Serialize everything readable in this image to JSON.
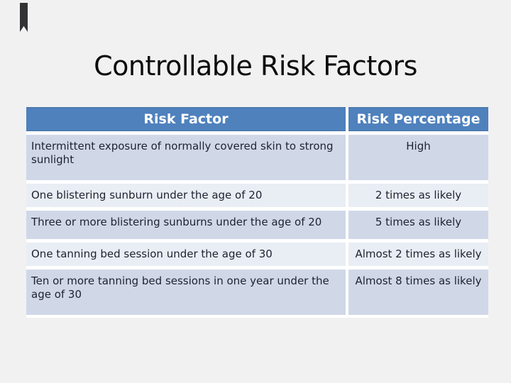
{
  "slide": {
    "title": "Controllable Risk Factors",
    "background_color": "#f1f1f2",
    "title_color": "#0c0c0c"
  },
  "bookmark": {
    "color": "#333336"
  },
  "table": {
    "accent_color": "#4f81bd",
    "band_color_dark": "#d0d8e8",
    "band_color_light": "#e9edf4",
    "header_text_color": "#ffffff",
    "body_text_color": "#1e2230",
    "columns": [
      "Risk Factor",
      "Risk Percentage"
    ],
    "rows": [
      {
        "factor": "Intermittent exposure of normally covered skin to strong sunlight",
        "percentage": "High"
      },
      {
        "factor": "One blistering sunburn under the age of 20",
        "percentage": "2 times as likely"
      },
      {
        "factor": "Three or more blistering sunburns under the age of 20",
        "percentage": "5 times as likely"
      },
      {
        "factor": "One tanning bed session under the age of 30",
        "percentage": "Almost 2 times as likely"
      },
      {
        "factor": "Ten or more tanning bed sessions in one year under the age of 30",
        "percentage": "Almost 8 times as likely"
      }
    ]
  }
}
